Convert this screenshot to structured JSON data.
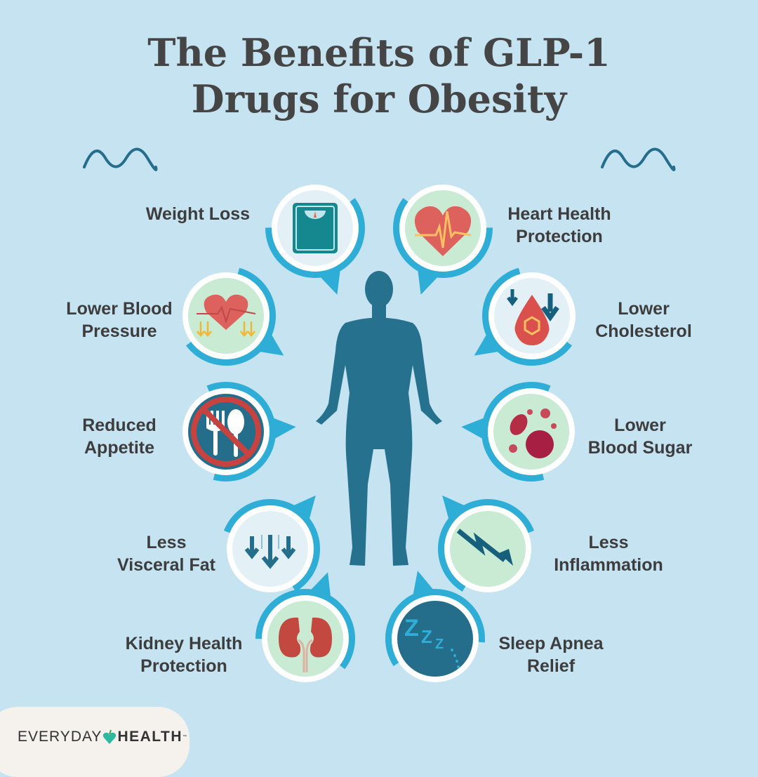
{
  "title_line1": "The Benefits of GLP-1",
  "title_line2": "Drugs for Obesity",
  "colors": {
    "background": "#c5e3f1",
    "accent": "#2eaed6",
    "body": "#25718e",
    "text": "#3d3d3d"
  },
  "benefits": [
    {
      "l1": "Weight Loss",
      "l2": "",
      "icon": "scale-icon"
    },
    {
      "l1": "Heart Health",
      "l2": "Protection",
      "icon": "heartbeat-icon"
    },
    {
      "l1": "Lower Blood",
      "l2": "Pressure",
      "icon": "heart-down-arrows-icon"
    },
    {
      "l1": "Lower",
      "l2": "Cholesterol",
      "icon": "blood-drop-icon"
    },
    {
      "l1": "Reduced",
      "l2": "Appetite",
      "icon": "no-fork-spoon-icon"
    },
    {
      "l1": "Lower",
      "l2": "Blood Sugar",
      "icon": "blood-cells-icon"
    },
    {
      "l1": "Less",
      "l2": "Visceral Fat",
      "icon": "down-arrows-icon"
    },
    {
      "l1": "Less",
      "l2": "Inflammation",
      "icon": "zigzag-down-arrow-icon"
    },
    {
      "l1": "Kidney Health",
      "l2": "Protection",
      "icon": "kidneys-icon"
    },
    {
      "l1": "Sleep Apnea",
      "l2": "Relief",
      "icon": "zzz-icon"
    }
  ],
  "logo": {
    "part1": "EVERYDAY",
    "part2": "HEALTH",
    "tm": "™"
  }
}
